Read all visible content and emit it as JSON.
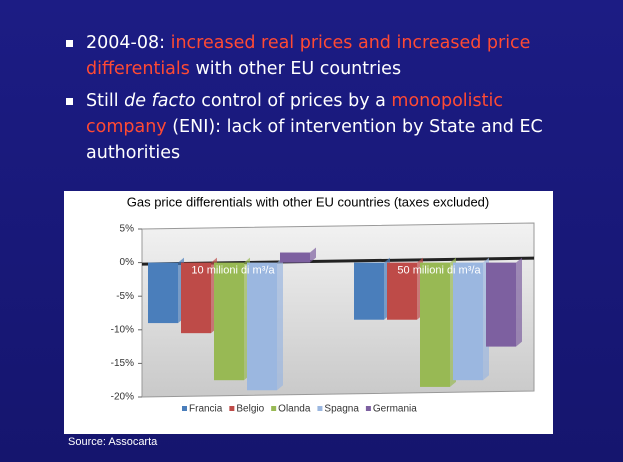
{
  "bullets": [
    {
      "segments": [
        {
          "text": "2004-08: ",
          "style": "plain"
        },
        {
          "text": "increased real prices and increased price differentials",
          "style": "highlight"
        },
        {
          "text": " with other EU countries",
          "style": "plain"
        }
      ]
    },
    {
      "segments": [
        {
          "text": "Still ",
          "style": "plain"
        },
        {
          "text": "de facto",
          "style": "italic"
        },
        {
          "text": " control of prices by a ",
          "style": "plain"
        },
        {
          "text": "monopolistic company",
          "style": "highlight"
        },
        {
          "text": " (ENI): lack of intervention by State and EC authorities",
          "style": "plain"
        }
      ]
    }
  ],
  "source": "Source: Assocarta",
  "chart_data": {
    "type": "bar",
    "title": "Gas price differentials with other EU countries (taxes excluded)",
    "categories": [
      "10 milioni di m³/a",
      "50 milioni di m³/a"
    ],
    "series": [
      {
        "name": "Francia",
        "color": "#4a7ebb",
        "values": [
          -9,
          -8.5
        ]
      },
      {
        "name": "Belgio",
        "color": "#be4b48",
        "values": [
          -10.5,
          -8.5
        ]
      },
      {
        "name": "Olanda",
        "color": "#98b954",
        "values": [
          -17.5,
          -18.5
        ]
      },
      {
        "name": "Spagna",
        "color": "#9bb7e0",
        "values": [
          -19,
          -17.5
        ]
      },
      {
        "name": "Germania",
        "color": "#7d60a0",
        "values": [
          1.5,
          -12.5
        ]
      }
    ],
    "ylim": [
      -20,
      5
    ],
    "yticks": [
      {
        "value": 5,
        "label": "5%"
      },
      {
        "value": 0,
        "label": "0%"
      },
      {
        "value": -5,
        "label": "-5%"
      },
      {
        "value": -10,
        "label": "-10%"
      },
      {
        "value": -15,
        "label": "-15%"
      },
      {
        "value": -20,
        "label": "-20%"
      }
    ],
    "legend": "bottom"
  }
}
